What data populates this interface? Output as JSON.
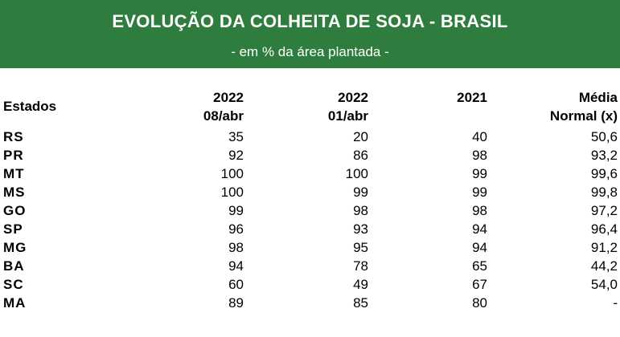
{
  "banner": {
    "title": "EVOLUÇÃO DA COLHEITA DE SOJA - BRASIL",
    "subtitle": "- em % da área plantada -"
  },
  "table": {
    "headers": {
      "state": "Estados",
      "col1_line1": "2022",
      "col1_line2": "08/abr",
      "col2_line1": "2022",
      "col2_line2": "01/abr",
      "col3_line1": "2021",
      "col4_line1": "Média",
      "col4_line2": "Normal (x)"
    },
    "rows": [
      {
        "state": "RS",
        "c1": "35",
        "c2": "20",
        "c3": "40",
        "c4": "50,6"
      },
      {
        "state": "PR",
        "c1": "92",
        "c2": "86",
        "c3": "98",
        "c4": "93,2"
      },
      {
        "state": "MT",
        "c1": "100",
        "c2": "100",
        "c3": "99",
        "c4": "99,6"
      },
      {
        "state": "MS",
        "c1": "100",
        "c2": "99",
        "c3": "99",
        "c4": "99,8"
      },
      {
        "state": "GO",
        "c1": "99",
        "c2": "98",
        "c3": "98",
        "c4": "97,2"
      },
      {
        "state": "SP",
        "c1": "96",
        "c2": "93",
        "c3": "94",
        "c4": "96,4"
      },
      {
        "state": "MG",
        "c1": "98",
        "c2": "95",
        "c3": "94",
        "c4": "91,2"
      },
      {
        "state": "BA",
        "c1": "94",
        "c2": "78",
        "c3": "65",
        "c4": "44,2"
      },
      {
        "state": "SC",
        "c1": "60",
        "c2": "49",
        "c3": "67",
        "c4": "54,0"
      },
      {
        "state": "MA",
        "c1": "89",
        "c2": "85",
        "c3": "80",
        "c4": "-"
      }
    ]
  }
}
